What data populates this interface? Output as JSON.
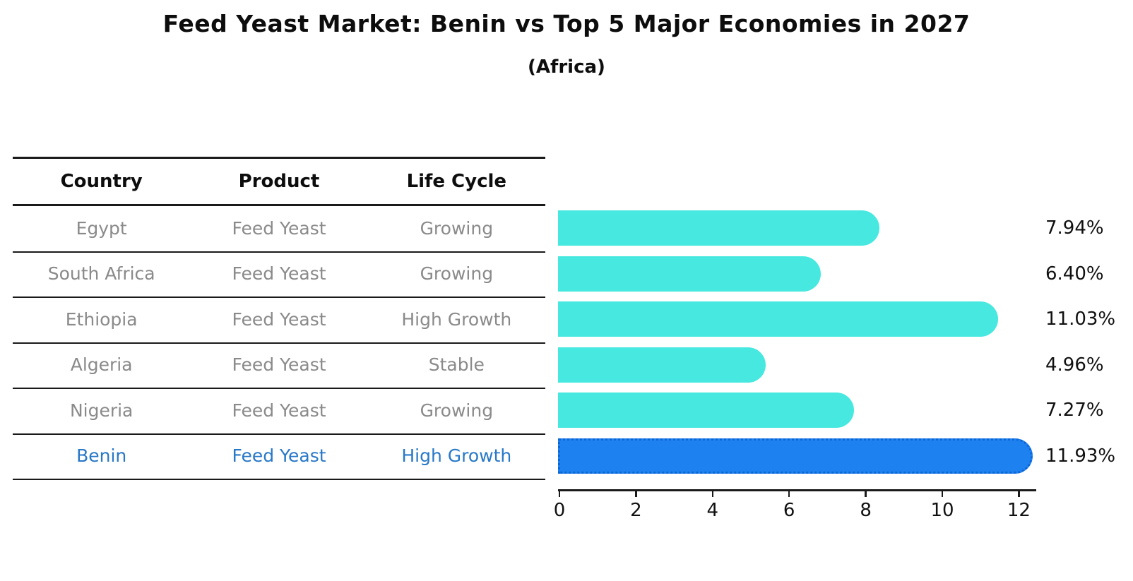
{
  "title": "Feed Yeast Market: Benin vs Top 5 Major Economies in 2027",
  "subtitle": "(Africa)",
  "table": {
    "headers": [
      "Country",
      "Product",
      "Life Cycle"
    ],
    "rows": [
      {
        "country": "Egypt",
        "product": "Feed Yeast",
        "life_cycle": "Growing",
        "highlight": false
      },
      {
        "country": "South Africa",
        "product": "Feed Yeast",
        "life_cycle": "Growing",
        "highlight": false
      },
      {
        "country": "Ethiopia",
        "product": "Feed Yeast",
        "life_cycle": "High Growth",
        "highlight": false
      },
      {
        "country": "Algeria",
        "product": "Feed Yeast",
        "life_cycle": "Stable",
        "highlight": false
      },
      {
        "country": "Nigeria",
        "product": "Feed Yeast",
        "life_cycle": "Growing",
        "highlight": true
      }
    ]
  },
  "chart_data": {
    "type": "bar",
    "orientation": "horizontal",
    "title": "Feed Yeast Market: Benin vs Top 5 Major Economies in 2027",
    "subtitle": "(Africa)",
    "categories": [
      "Egypt",
      "South Africa",
      "Ethiopia",
      "Algeria",
      "Nigeria",
      "Benin"
    ],
    "values": [
      7.94,
      6.4,
      11.03,
      4.96,
      7.27,
      11.93
    ],
    "value_labels": [
      "7.94%",
      "6.40%",
      "11.03%",
      "4.96%",
      "7.27%",
      "11.93%"
    ],
    "highlight_index": 5,
    "xlabel": "",
    "ylabel": "",
    "xlim": [
      0,
      12.5
    ],
    "x_ticks": [
      0,
      2,
      4,
      6,
      8,
      10,
      12
    ],
    "grid": false,
    "legend": false
  },
  "colors": {
    "bar_default": "#47E8E0",
    "bar_highlight_fill": "#1E81F0",
    "bar_highlight_border": "#0C66D6",
    "highlight_text": "#2878C8",
    "row_text": "#8a8a8a",
    "header_text": "#0d0d0d",
    "axis_text": "#111111"
  }
}
